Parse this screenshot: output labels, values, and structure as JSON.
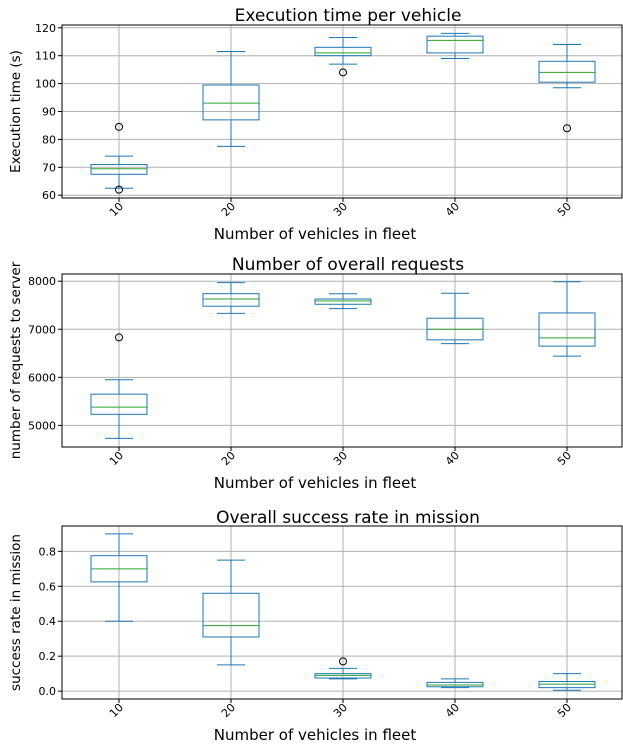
{
  "chart_data": [
    {
      "type": "box",
      "title": "Execution time per vehicle",
      "xlabel": "Number of vehicles in fleet",
      "ylabel": "Execution time (s)",
      "categories": [
        "10",
        "20",
        "30",
        "40",
        "50"
      ],
      "ylim": [
        59,
        121
      ],
      "yticks": [
        60,
        70,
        80,
        90,
        100,
        110,
        120
      ],
      "grid": true,
      "colors": {
        "box": "#1f77b4",
        "median": "#2ca02c",
        "flier": "#000000"
      },
      "boxes": [
        {
          "whisker_low": 62.5,
          "q1": 67.5,
          "median": 69.5,
          "q3": 71.0,
          "whisker_high": 74.0,
          "fliers": [
            84.5,
            62.0
          ]
        },
        {
          "whisker_low": 77.5,
          "q1": 87.0,
          "median": 93.0,
          "q3": 99.5,
          "whisker_high": 111.5,
          "fliers": []
        },
        {
          "whisker_low": 107.0,
          "q1": 110.0,
          "median": 111.0,
          "q3": 113.0,
          "whisker_high": 116.5,
          "fliers": [
            104.0
          ]
        },
        {
          "whisker_low": 109.0,
          "q1": 111.0,
          "median": 115.5,
          "q3": 117.0,
          "whisker_high": 118.0,
          "fliers": []
        },
        {
          "whisker_low": 98.5,
          "q1": 100.5,
          "median": 104.0,
          "q3": 108.0,
          "whisker_high": 114.0,
          "fliers": [
            84.0
          ]
        }
      ]
    },
    {
      "type": "box",
      "title": "Number of overall requests",
      "xlabel": "Number of vehicles in fleet",
      "ylabel": "number of requests to server",
      "categories": [
        "10",
        "20",
        "30",
        "40",
        "50"
      ],
      "ylim": [
        4550,
        8150
      ],
      "yticks": [
        5000,
        6000,
        7000,
        8000
      ],
      "grid": true,
      "colors": {
        "box": "#1f77b4",
        "median": "#2ca02c",
        "flier": "#000000"
      },
      "boxes": [
        {
          "whisker_low": 4730,
          "q1": 5230,
          "median": 5380,
          "q3": 5650,
          "whisker_high": 5950,
          "fliers": [
            6830
          ]
        },
        {
          "whisker_low": 7330,
          "q1": 7480,
          "median": 7630,
          "q3": 7740,
          "whisker_high": 7970,
          "fliers": []
        },
        {
          "whisker_low": 7430,
          "q1": 7520,
          "median": 7590,
          "q3": 7630,
          "whisker_high": 7740,
          "fliers": []
        },
        {
          "whisker_low": 6700,
          "q1": 6780,
          "median": 7000,
          "q3": 7230,
          "whisker_high": 7750,
          "fliers": []
        },
        {
          "whisker_low": 6440,
          "q1": 6650,
          "median": 6820,
          "q3": 7340,
          "whisker_high": 7990,
          "fliers": []
        }
      ]
    },
    {
      "type": "box",
      "title": "Overall success rate in mission",
      "xlabel": "Number of vehicles in fleet",
      "ylabel": "success rate in mission",
      "categories": [
        "10",
        "20",
        "30",
        "40",
        "50"
      ],
      "ylim": [
        -0.045,
        0.945
      ],
      "yticks": [
        "0.0",
        "0.2",
        "0.4",
        "0.6",
        "0.8"
      ],
      "grid": true,
      "colors": {
        "box": "#1f77b4",
        "median": "#2ca02c",
        "flier": "#000000"
      },
      "boxes": [
        {
          "whisker_low": 0.4,
          "q1": 0.625,
          "median": 0.7,
          "q3": 0.775,
          "whisker_high": 0.9,
          "fliers": []
        },
        {
          "whisker_low": 0.15,
          "q1": 0.31,
          "median": 0.375,
          "q3": 0.56,
          "whisker_high": 0.75,
          "fliers": []
        },
        {
          "whisker_low": 0.07,
          "q1": 0.075,
          "median": 0.09,
          "q3": 0.1,
          "whisker_high": 0.13,
          "fliers": [
            0.17
          ]
        },
        {
          "whisker_low": 0.02,
          "q1": 0.025,
          "median": 0.035,
          "q3": 0.05,
          "whisker_high": 0.07,
          "fliers": []
        },
        {
          "whisker_low": 0.005,
          "q1": 0.02,
          "median": 0.04,
          "q3": 0.055,
          "whisker_high": 0.1,
          "fliers": []
        }
      ]
    }
  ]
}
